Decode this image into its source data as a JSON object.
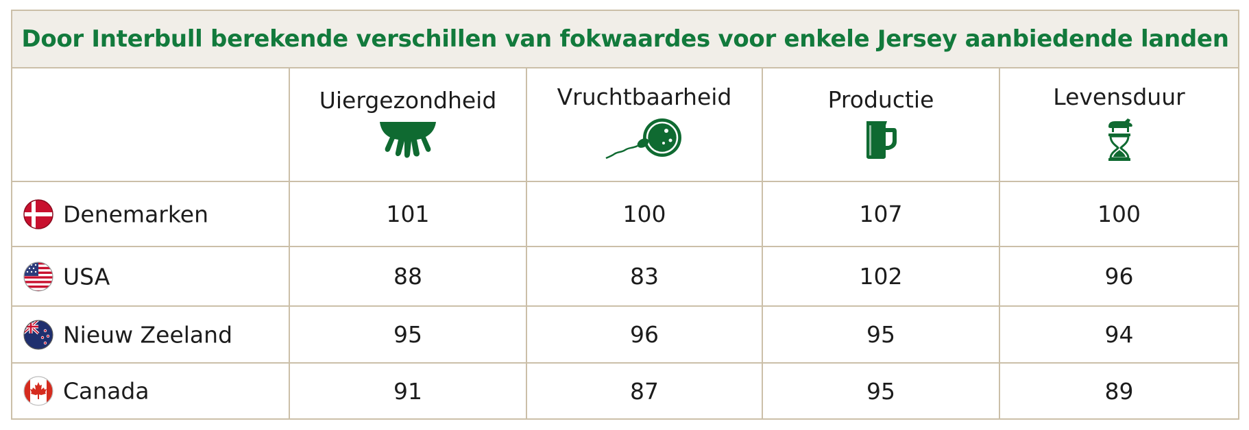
{
  "title": "Door Interbull berekende verschillen van fokwaardes voor enkele Jersey aanbiedende landen",
  "colors": {
    "title_green": "#127a3c",
    "icon_green": "#0f6a31",
    "border": "#cbbfa8",
    "title_background": "#f1eee8"
  },
  "columns": [
    {
      "label": "Uiergezondheid",
      "icon": "udder-icon"
    },
    {
      "label": "Vruchtbaarheid",
      "icon": "sperm-egg-icon"
    },
    {
      "label": "Productie",
      "icon": "milk-jug-icon"
    },
    {
      "label": "Levensduur",
      "icon": "cow-hourglass-icon"
    }
  ],
  "rows": [
    {
      "country": "Denemarken",
      "flag": "denmark-flag-icon",
      "values": [
        "101",
        "100",
        "107",
        "100"
      ]
    },
    {
      "country": "USA",
      "flag": "usa-flag-icon",
      "values": [
        "88",
        "83",
        "102",
        "96"
      ]
    },
    {
      "country": "Nieuw Zeeland",
      "flag": "new-zealand-flag-icon",
      "values": [
        "95",
        "96",
        "95",
        "94"
      ]
    },
    {
      "country": "Canada",
      "flag": "canada-flag-icon",
      "values": [
        "91",
        "87",
        "95",
        "89"
      ]
    }
  ]
}
